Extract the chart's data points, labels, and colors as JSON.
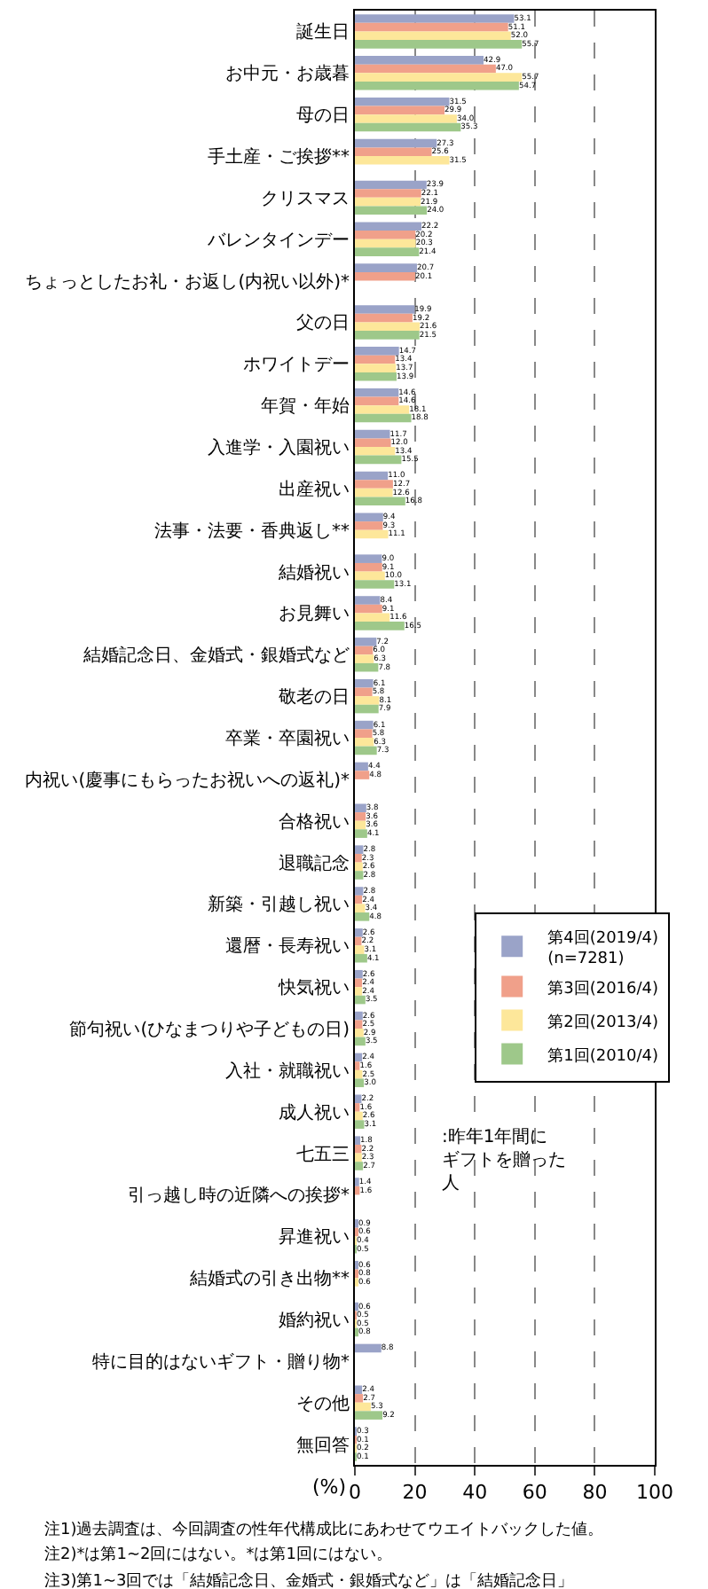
{
  "chart_data": {
    "type": "bar",
    "orientation": "horizontal",
    "categories": [
      "誕生日",
      "お中元・お歳暮",
      "母の日",
      "手土産・ご挨拶**",
      "クリスマス",
      "バレンタインデー",
      "ちょっとしたお礼・お返し(内祝い以外)*",
      "父の日",
      "ホワイトデー",
      "年賀・年始",
      "入進学・入園祝い",
      "出産祝い",
      "法事・法要・香典返し**",
      "結婚祝い",
      "お見舞い",
      "結婚記念日、金婚式・銀婚式など",
      "敬老の日",
      "卒業・卒園祝い",
      "内祝い(慶事にもらったお祝いへの返礼)*",
      "合格祝い",
      "退職記念",
      "新築・引越し祝い",
      "還暦・長寿祝い",
      "快気祝い",
      "節句祝い(ひなまつりや子どもの日)",
      "入社・就職祝い",
      "成人祝い",
      "七五三",
      "引っ越し時の近隣への挨拶*",
      "昇進祝い",
      "結婚式の引き出物**",
      "婚約祝い",
      "特に目的はないギフト・贈り物*",
      "その他",
      "無回答"
    ],
    "series": [
      {
        "name": "第4回(2019/4)\n(n=7281)",
        "color": "#9aa3c8",
        "values": [
          53.1,
          42.9,
          31.5,
          27.3,
          23.9,
          22.2,
          20.7,
          19.9,
          14.7,
          14.6,
          11.7,
          11.0,
          9.4,
          9.0,
          8.4,
          7.2,
          6.1,
          6.1,
          4.4,
          3.8,
          2.8,
          2.8,
          2.6,
          2.6,
          2.6,
          2.4,
          2.2,
          1.8,
          1.4,
          0.9,
          0.6,
          0.6,
          8.8,
          2.4,
          0.3
        ],
        "value_labels": [
          "53.1",
          "42.9",
          "31.5",
          "27.3",
          "23.9",
          "22.2",
          "20.7",
          "19.9",
          "14.7",
          "14.6",
          "11.7",
          "11.0",
          "9.4",
          "9.0",
          "8.4",
          "7.2",
          "6.1",
          "6.1",
          "4.4",
          "3.8",
          "2.8",
          "2.8",
          "2.6",
          "2.6",
          "2.6",
          "2.4",
          "2.2",
          "1.8",
          "1.4",
          "0.9",
          "0.6",
          "0.6",
          "8.8",
          "2.4",
          "0.3"
        ]
      },
      {
        "name": "第3回(2016/4)",
        "color": "#f0a08a",
        "values": [
          51.1,
          47.0,
          29.9,
          25.6,
          22.1,
          20.2,
          20.1,
          19.2,
          13.4,
          14.6,
          12.0,
          12.7,
          9.3,
          9.1,
          9.1,
          6.0,
          5.8,
          5.8,
          4.8,
          3.6,
          2.3,
          2.4,
          2.2,
          2.4,
          2.5,
          1.6,
          1.6,
          2.2,
          1.6,
          0.6,
          0.8,
          0.5,
          null,
          2.7,
          0.1
        ],
        "value_labels": [
          "51.1",
          "47.0",
          "29.9",
          "25.6",
          "22.1",
          "20.2",
          "20.1",
          "19.2",
          "13.4",
          "14.6",
          "12.0",
          "12.7",
          "9.3",
          "9.1",
          "9.1",
          "6.0",
          "5.8",
          "5.8",
          "4.8",
          "3.6",
          "2.3",
          "2.4",
          "2.2",
          "2.4",
          "2.5",
          "1.6",
          "1.6",
          "2.2",
          "1.6",
          "0.6",
          "0.8",
          "0.5",
          null,
          "2.7",
          "0.1"
        ]
      },
      {
        "name": "第2回(2013/4)",
        "color": "#fde79a",
        "values": [
          52.0,
          55.7,
          34.0,
          31.5,
          21.9,
          20.3,
          null,
          21.6,
          13.7,
          18.1,
          13.4,
          12.6,
          11.1,
          10.0,
          11.6,
          6.3,
          8.1,
          6.3,
          null,
          3.6,
          2.6,
          3.4,
          3.1,
          2.4,
          2.9,
          2.5,
          2.6,
          2.3,
          null,
          0.4,
          0.6,
          0.5,
          null,
          5.3,
          0.2
        ],
        "value_labels": [
          "52.0",
          "55.7",
          "34.0",
          "31.5",
          "21.9",
          "20.3",
          null,
          "21.6",
          "13.7",
          "18.1",
          "13.4",
          "12.6",
          "11.1",
          "10.0",
          "11.6",
          "6.3",
          "8.1",
          "6.3",
          null,
          "3.6",
          "2.6",
          "3.4",
          "3.1",
          "2.4",
          "2.9",
          "2.5",
          "2.6",
          "2.3",
          null,
          "0.4",
          "0.6",
          "0.5",
          null,
          "5.3",
          "0.2"
        ]
      },
      {
        "name": "第1回(2010/4)",
        "color": "#9ec88a",
        "values": [
          55.7,
          54.7,
          35.3,
          null,
          24.0,
          21.4,
          null,
          21.5,
          13.9,
          18.8,
          15.5,
          16.8,
          null,
          13.1,
          16.5,
          7.8,
          7.9,
          7.3,
          null,
          4.1,
          2.8,
          4.8,
          4.1,
          3.5,
          3.5,
          3.0,
          3.1,
          2.7,
          null,
          0.5,
          null,
          0.8,
          null,
          9.2,
          0.1
        ],
        "value_labels": [
          "55.7",
          "54.7",
          "35.3",
          null,
          "24.0",
          "21.4",
          null,
          "21.5",
          "13.9",
          "18.8",
          "15.5",
          "16.8",
          null,
          "13.1",
          "16.5",
          "7.8",
          "7.9",
          "7.3",
          null,
          "4.1",
          "2.8",
          "4.8",
          "4.1",
          "3.5",
          "3.5",
          "3.0",
          "3.1",
          "2.7",
          null,
          "0.5",
          null,
          "0.8",
          null,
          "9.2",
          "0.1"
        ]
      }
    ],
    "xlim": [
      0,
      100
    ],
    "xticks": [
      0,
      20,
      40,
      60,
      80,
      100
    ],
    "xlabel": "(%)",
    "grid": "x",
    "legend": "right",
    "annotations": [
      ":昨年1年間にギフトを贈った人",
      "注1)過去調査は、今回調査の性年代構成比にあわせてウエイトバックした値。",
      "注2)*は第1~2回にはない。*は第1回にはない。",
      "注3)第1~3回では「結婚記念日、金婚式・銀婚式など」は「結婚記念日」"
    ]
  }
}
